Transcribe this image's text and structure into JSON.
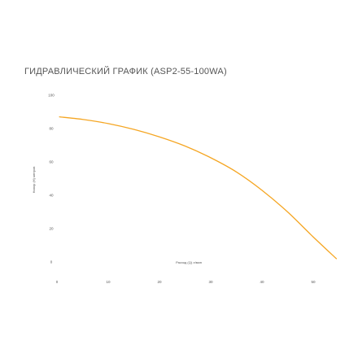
{
  "chart_data": {
    "type": "line",
    "title": "ГИДРАВЛИЧЕСКИЙ ГРАФИК (ASP2-55-100WA)",
    "xlabel": "Расход (Q) л/мин",
    "ylabel": "Напор (Н) метров",
    "xlim": [
      0,
      55
    ],
    "ylim": [
      0,
      100
    ],
    "x_ticks": [
      "0",
      "10",
      "20",
      "30",
      "40",
      "50"
    ],
    "y_ticks": [
      "0",
      "20",
      "40",
      "60",
      "80",
      "100"
    ],
    "grid": false,
    "legend": "none",
    "series": [
      {
        "color": "#f5a623",
        "x": [
          0.5,
          5,
          10,
          15,
          20,
          25,
          30,
          35,
          40,
          45,
          50,
          54.5
        ],
        "y": [
          87,
          85.5,
          83,
          79.5,
          75,
          69.5,
          62.5,
          54,
          43,
          30,
          15,
          2
        ]
      }
    ]
  }
}
